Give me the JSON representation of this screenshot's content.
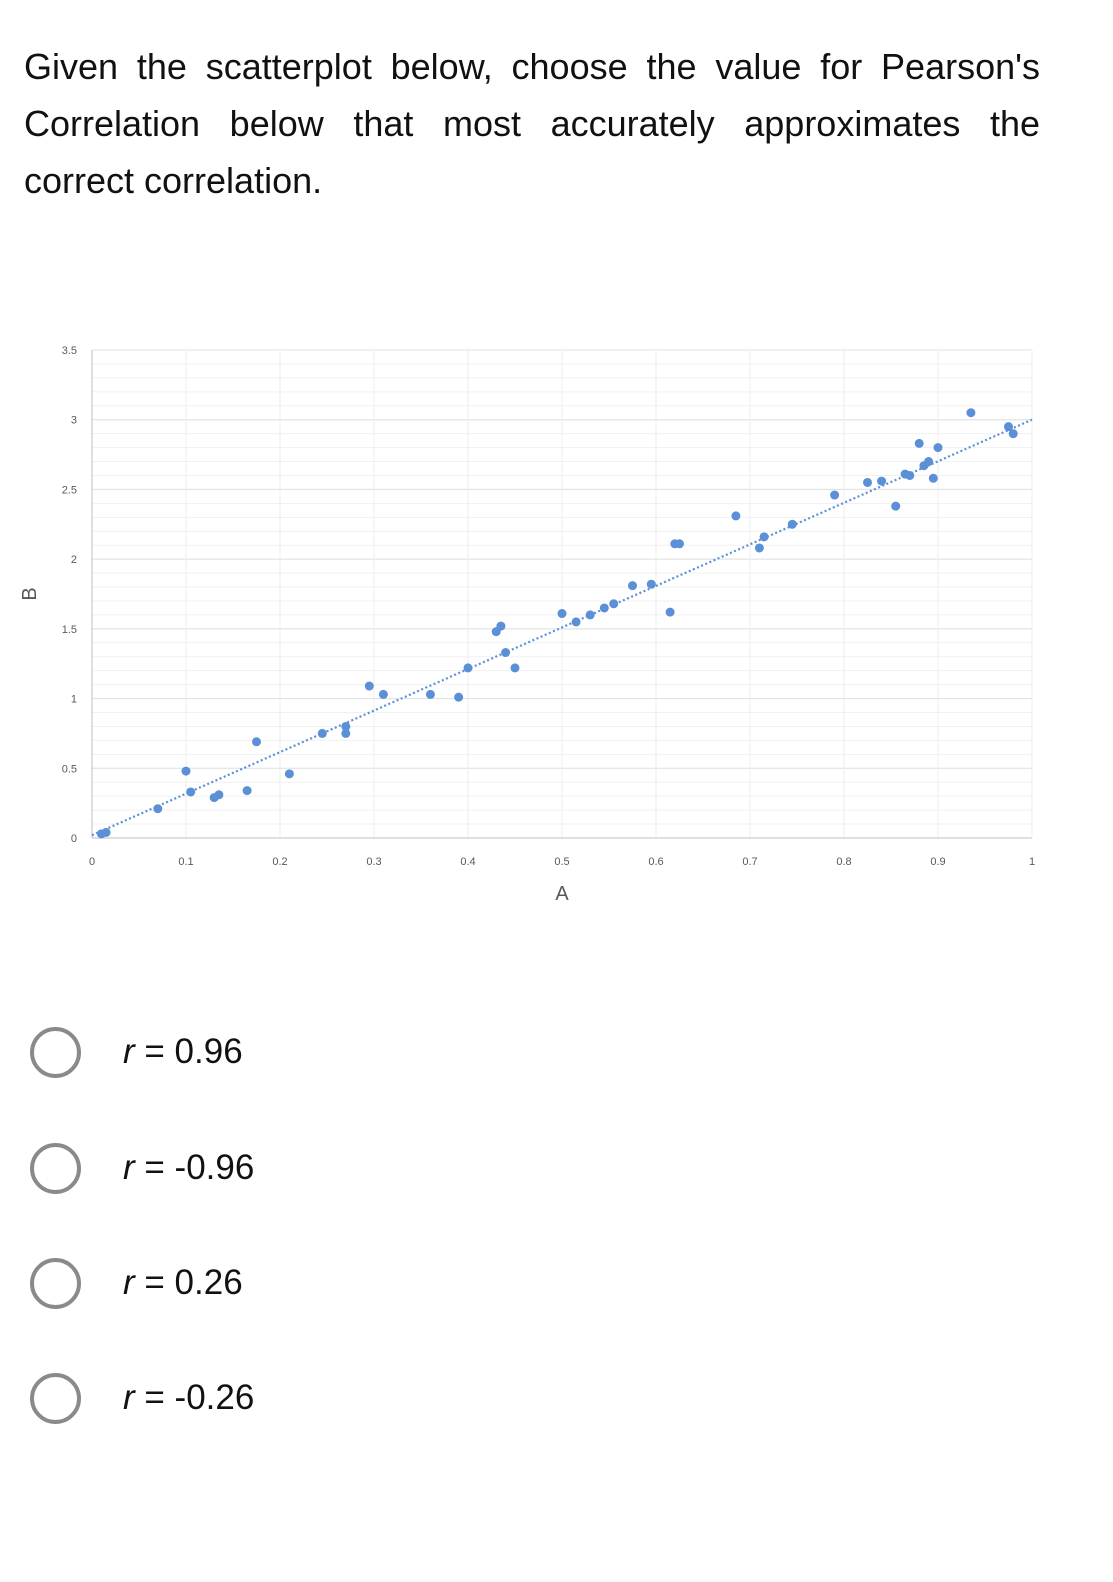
{
  "question": {
    "text": "Given the scatterplot below, choose the value for Pearson's Correlation below that most accurately approximates the correct correlation."
  },
  "chart_data": {
    "type": "scatter",
    "title": "",
    "xlabel": "A",
    "ylabel": "B",
    "xlim": [
      0,
      1
    ],
    "ylim": [
      0,
      3.5
    ],
    "x_ticks": [
      "0",
      "0.1",
      "0.2",
      "0.3",
      "0.4",
      "0.5",
      "0.6",
      "0.7",
      "0.8",
      "0.9",
      "1"
    ],
    "y_ticks": [
      "0",
      "0.5",
      "1",
      "1.5",
      "2",
      "2.5",
      "3",
      "3.5"
    ],
    "grid": true,
    "legend": "none",
    "marker_color": "#5b8fd6",
    "gridline_color": "#e0e0e0",
    "trendline": {
      "style": "dotted",
      "color": "#5b8fd6",
      "from": [
        0,
        0.02
      ],
      "to": [
        1,
        3.0
      ]
    },
    "series": [
      {
        "points": [
          [
            0.01,
            0.03
          ],
          [
            0.015,
            0.04
          ],
          [
            0.07,
            0.21
          ],
          [
            0.1,
            0.48
          ],
          [
            0.105,
            0.33
          ],
          [
            0.13,
            0.29
          ],
          [
            0.135,
            0.31
          ],
          [
            0.165,
            0.34
          ],
          [
            0.175,
            0.69
          ],
          [
            0.21,
            0.46
          ],
          [
            0.245,
            0.75
          ],
          [
            0.27,
            0.8
          ],
          [
            0.27,
            0.75
          ],
          [
            0.295,
            1.09
          ],
          [
            0.31,
            1.03
          ],
          [
            0.36,
            1.03
          ],
          [
            0.39,
            1.01
          ],
          [
            0.4,
            1.22
          ],
          [
            0.43,
            1.48
          ],
          [
            0.435,
            1.52
          ],
          [
            0.44,
            1.33
          ],
          [
            0.45,
            1.22
          ],
          [
            0.5,
            1.61
          ],
          [
            0.515,
            1.55
          ],
          [
            0.53,
            1.6
          ],
          [
            0.545,
            1.65
          ],
          [
            0.555,
            1.68
          ],
          [
            0.575,
            1.81
          ],
          [
            0.595,
            1.82
          ],
          [
            0.615,
            1.62
          ],
          [
            0.62,
            2.11
          ],
          [
            0.625,
            2.11
          ],
          [
            0.685,
            2.31
          ],
          [
            0.71,
            2.08
          ],
          [
            0.715,
            2.16
          ],
          [
            0.745,
            2.25
          ],
          [
            0.79,
            2.46
          ],
          [
            0.825,
            2.55
          ],
          [
            0.84,
            2.56
          ],
          [
            0.855,
            2.38
          ],
          [
            0.865,
            2.61
          ],
          [
            0.87,
            2.6
          ],
          [
            0.88,
            2.83
          ],
          [
            0.885,
            2.67
          ],
          [
            0.89,
            2.7
          ],
          [
            0.895,
            2.58
          ],
          [
            0.9,
            2.8
          ],
          [
            0.935,
            3.05
          ],
          [
            0.975,
            2.95
          ],
          [
            0.98,
            2.9
          ]
        ]
      }
    ]
  },
  "options": [
    {
      "var": "r",
      "rest": " = 0.96"
    },
    {
      "var": "r",
      "rest": " = -0.96"
    },
    {
      "var": "r",
      "rest": " = 0.26"
    },
    {
      "var": "r",
      "rest": " = -0.26"
    }
  ]
}
